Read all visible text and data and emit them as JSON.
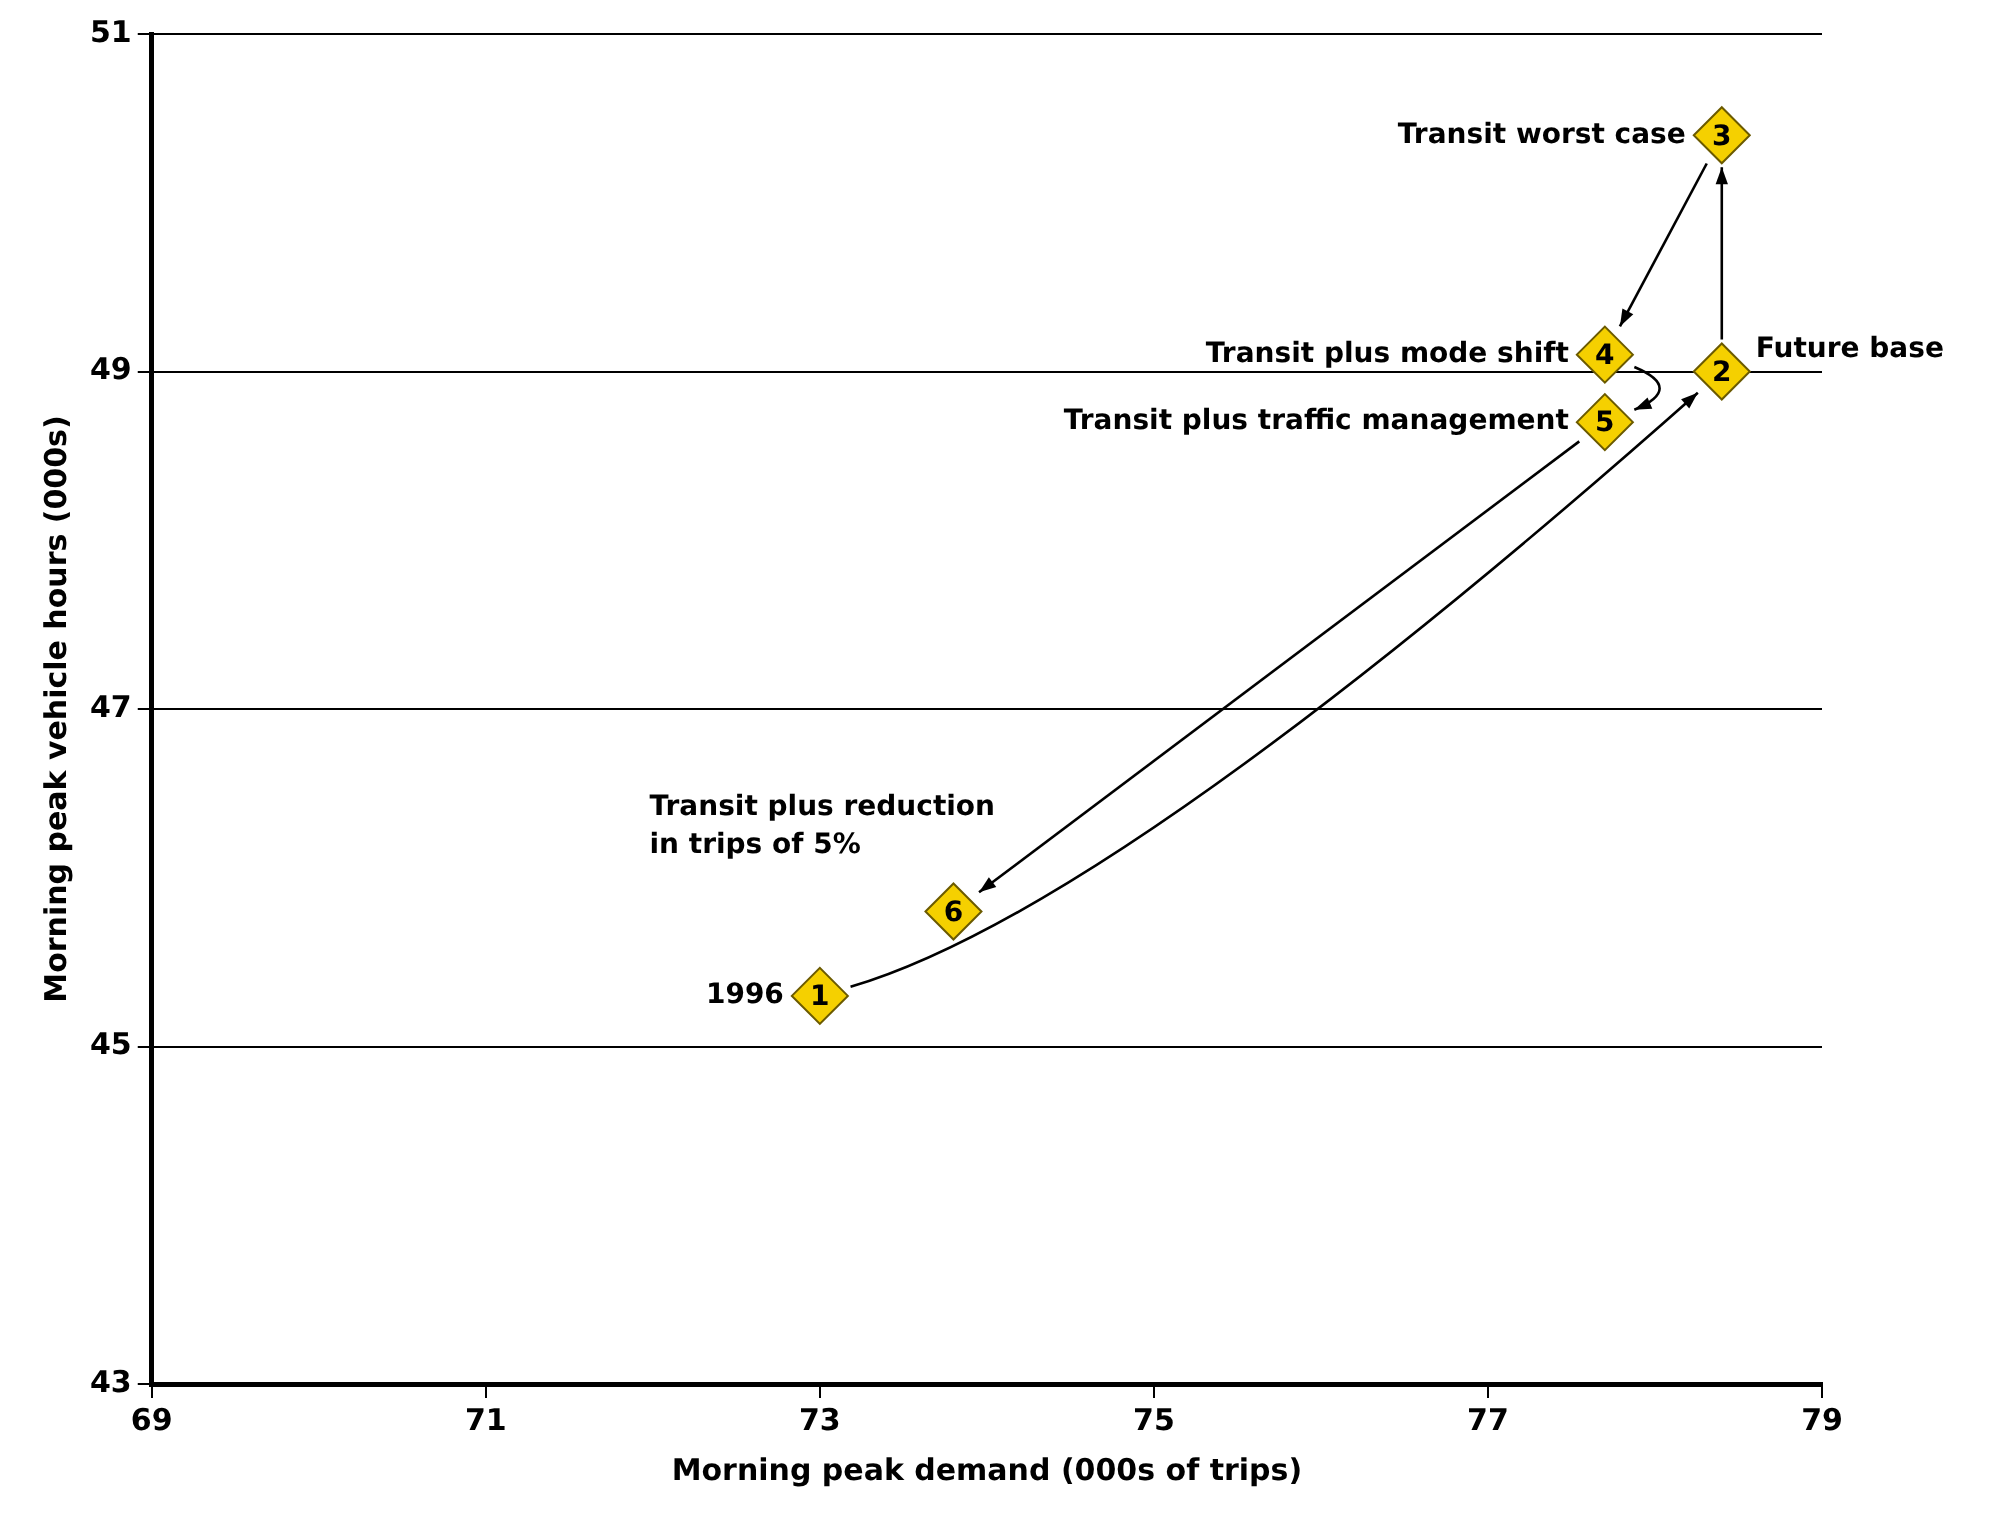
{
  "chart_data": {
    "type": "scatter",
    "xlabel": "Morning peak demand (000s of trips)",
    "ylabel": "Morning peak vehicle hours (000s)",
    "xlim": [
      69,
      79
    ],
    "xticks": [
      69,
      71,
      73,
      75,
      77,
      79
    ],
    "ylim": [
      43,
      51
    ],
    "yticks": [
      43,
      45,
      47,
      49,
      51
    ],
    "grid": "y",
    "marker": "diamond",
    "series": [
      {
        "color": "#f5d000",
        "x": [
          73.0,
          78.4,
          78.4,
          77.7,
          77.7,
          73.8
        ],
        "values": [
          45.3,
          49.0,
          50.4,
          49.1,
          48.7,
          45.8
        ]
      }
    ],
    "annotations": [
      {
        "text": "1",
        "x": 73.0,
        "y": 45.3
      },
      {
        "text": "2",
        "x": 78.4,
        "y": 49.0
      },
      {
        "text": "3",
        "x": 78.4,
        "y": 50.4
      },
      {
        "text": "4",
        "x": 77.7,
        "y": 49.1
      },
      {
        "text": "5",
        "x": 77.7,
        "y": 48.7
      },
      {
        "text": "6",
        "x": 73.8,
        "y": 45.8
      },
      {
        "text": "1996",
        "x": 73.0,
        "y": 45.3
      },
      {
        "text": "Future base",
        "x": 78.4,
        "y": 49.0
      },
      {
        "text": "Transit worst case",
        "x": 78.4,
        "y": 50.4
      },
      {
        "text": "Transit plus mode shift",
        "x": 77.7,
        "y": 49.1
      },
      {
        "text": "Transit plus traffic management",
        "x": 77.7,
        "y": 48.7
      },
      {
        "text": "Transit plus reduction\nin trips of 5%",
        "x": 73.8,
        "y": 45.8
      }
    ]
  }
}
